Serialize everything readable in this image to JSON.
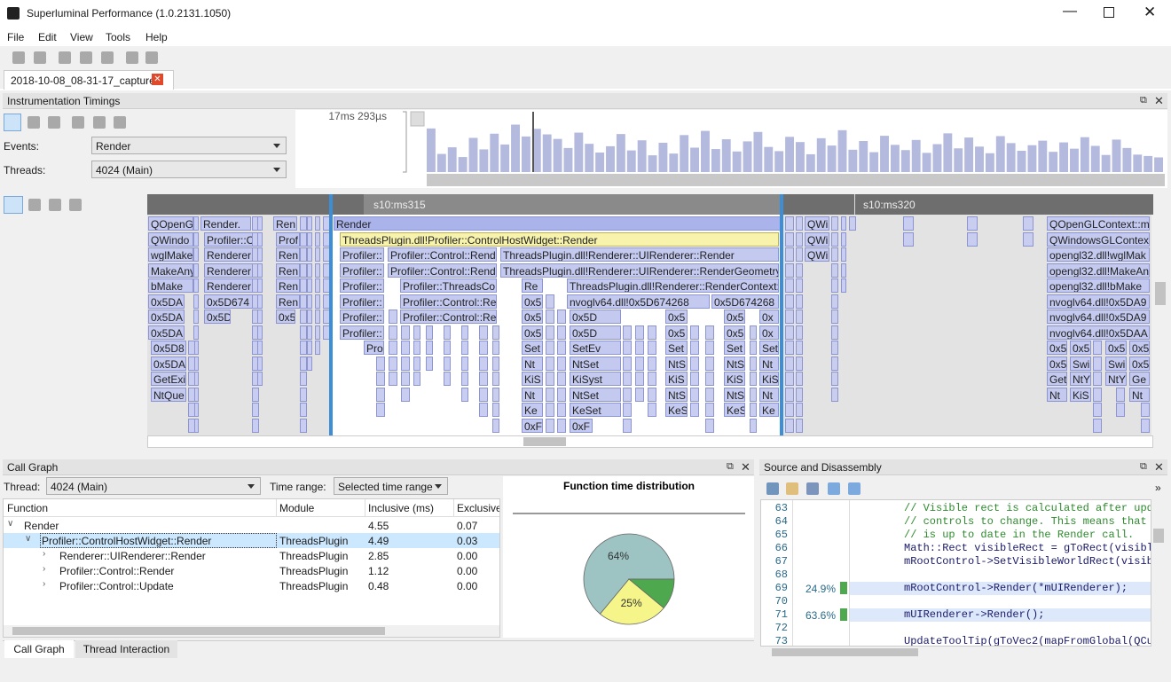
{
  "window": {
    "title": "Superluminal Performance (1.0.2131.1050)"
  },
  "menu": [
    "File",
    "Edit",
    "View",
    "Tools",
    "Help"
  ],
  "tabs": [
    "2018-10-08_08-31-17_capture"
  ],
  "instrumentation": {
    "title": "Instrumentation Timings",
    "events_label": "Events:",
    "events": "Render",
    "threads_label": "Threads:",
    "threads": "4024 (Main)",
    "histogram": {
      "max": {
        "value": 17.293,
        "label": "17ms 293µs"
      },
      "values": [
        12.5,
        5.2,
        7.1,
        4.3,
        9.8,
        6.5,
        11.0,
        7.9,
        13.6,
        10.2,
        12.4,
        10.8,
        9.5,
        6.9,
        11.3,
        8.1,
        5.6,
        7.4,
        10.9,
        6.2,
        9.1,
        4.8,
        8.4,
        5.3,
        10.6,
        7.0,
        11.8,
        6.6,
        9.4,
        5.9,
        8.8,
        11.5,
        7.2,
        6.0,
        10.1,
        8.6,
        5.1,
        9.7,
        7.6,
        12.0,
        6.4,
        8.9,
        5.7,
        10.4,
        7.8,
        6.3,
        9.2,
        5.5,
        8.0,
        11.1,
        6.8,
        9.9,
        7.3,
        5.4,
        10.3,
        8.3,
        6.1,
        7.7,
        9.0,
        5.8,
        8.5,
        6.7,
        10.0,
        7.5,
        4.9,
        9.3,
        6.9,
        5.0,
        4.6,
        4.2
      ]
    },
    "ruler": [
      "s10:ms315",
      "s10:ms320"
    ],
    "rows": [
      [
        "QOpenG",
        "Render.",
        "Ren",
        "Render",
        "QWi",
        "QOpenGLContext::m"
      ],
      [
        "QWindo",
        "Profiler::C",
        "Prof",
        "ThreadsPlugin.dll!Profiler::ControlHostWidget::Render",
        "QWi",
        "QWindowsGLContex"
      ],
      [
        "wglMake",
        "Renderer::",
        "Ren",
        "Profiler::",
        "Profiler::Control::Rend",
        "ThreadsPlugin.dll!Renderer::UIRenderer::Render",
        "QWi",
        "opengl32.dll!wglMak"
      ],
      [
        "MakeAny",
        "Renderer::",
        "Ren",
        "Profiler::",
        "Profiler::Control::Rend",
        "ThreadsPlugin.dll!Renderer::UIRenderer::RenderGeometry",
        "opengl32.dll!MakeAn"
      ],
      [
        "bMake",
        "Renderer::",
        "Ren",
        "Profiler::",
        "Profiler::ThreadsCo",
        "Re",
        "ThreadsPlugin.dll!Renderer::RenderContext::",
        "opengl32.dll!bMake"
      ],
      [
        "0x5DA",
        "0x5D674",
        "Ren",
        "Profiler::",
        "Profiler::Control::Re",
        "0x5",
        "nvoglv64.dll!0x5D674268",
        "0x5D674268",
        "nvoglv64.dll!0x5DA9"
      ],
      [
        "0x5DA",
        "0x5D",
        "0x5",
        "Profiler::",
        "Profiler::Control::Re",
        "0x5",
        "0x5D",
        "0x5",
        "0x5",
        "0x",
        "nvoglv64.dll!0x5DA9"
      ],
      [
        "0x5DA",
        "Profiler::",
        "0x5",
        "0x5D",
        "0x5",
        "0x5",
        "0x",
        "nvoglv64.dll!0x5DAA"
      ],
      [
        "0x5D8",
        "Pro",
        "Set",
        "SetEv",
        "Set",
        "Set",
        "Set",
        "0x5",
        "0x5",
        "0x5",
        "0x5"
      ],
      [
        "0x5DA",
        "Nt",
        "NtSet",
        "NtS",
        "NtS",
        "Nt",
        "0x5",
        "Swi",
        "Swi",
        "0x5"
      ],
      [
        "GetExi",
        "KiS",
        "KiSyst",
        "KiS",
        "KiS",
        "KiS",
        "Get",
        "NtY",
        "NtY",
        "Ge"
      ],
      [
        "NtQue",
        "Nt",
        "NtSet",
        "NtS",
        "NtS",
        "Nt",
        "Nt",
        "KiS",
        "Nt"
      ],
      [
        "Ke",
        "KeSet",
        "KeS",
        "KeS",
        "Ke"
      ],
      [
        "0xF",
        "0xF"
      ]
    ]
  },
  "call_graph": {
    "title": "Call Graph",
    "thread_label": "Thread:",
    "thread": "4024 (Main)",
    "time_range_label": "Time range:",
    "time_range": "Selected time range",
    "columns": [
      "Function",
      "Module",
      "Inclusive (ms)",
      "Exclusive"
    ],
    "rows": [
      {
        "function": "Render",
        "inclusive": "4.55",
        "exclusive": "0.07"
      },
      {
        "function": "Profiler::ControlHostWidget::Render",
        "module": "ThreadsPlugin",
        "inclusive": "4.49",
        "exclusive": "0.03"
      },
      {
        "function": "Renderer::UIRenderer::Render",
        "module": "ThreadsPlugin",
        "inclusive": "2.85",
        "exclusive": "0.00"
      },
      {
        "function": "Profiler::Control::Render",
        "module": "ThreadsPlugin",
        "inclusive": "1.12",
        "exclusive": "0.00"
      },
      {
        "function": "Profiler::Control::Update",
        "module": "ThreadsPlugin",
        "inclusive": "0.48",
        "exclusive": "0.00"
      }
    ],
    "distribution": {
      "title": "Function time distribution",
      "values": [
        64,
        25,
        11
      ],
      "value_labels": [
        "64%",
        "25%",
        null
      ],
      "colors": [
        "#9dc3c3",
        "#f5f58a",
        "#4ea84e"
      ]
    }
  },
  "bottom_tabs": [
    "Call Graph",
    "Thread Interaction"
  ],
  "source": {
    "title": "Source and Disassembly",
    "lines": [
      {
        "line": 63,
        "code": "// Visible rect is calculated after upda"
      },
      {
        "line": 64,
        "code": "// controls to change. This means that t"
      },
      {
        "line": 65,
        "code": "// is up to date in the Render call."
      },
      {
        "line": 66,
        "code": "Math::Rect visibleRect = gToRect(visible"
      },
      {
        "line": 67,
        "code": "mRootControl->SetVisibleWorldRect(visibl"
      },
      {
        "line": 68
      },
      {
        "line": 69,
        "percent": "24.9%",
        "code": "mRootControl->Render(*mUIRenderer);"
      },
      {
        "line": 70
      },
      {
        "line": 71,
        "percent": "63.6%",
        "code": "mUIRenderer->Render();"
      },
      {
        "line": 72
      },
      {
        "line": 73,
        "code": "UpdateToolTip(gToVec2(mapFromGlobal(QCur"
      }
    ]
  }
}
